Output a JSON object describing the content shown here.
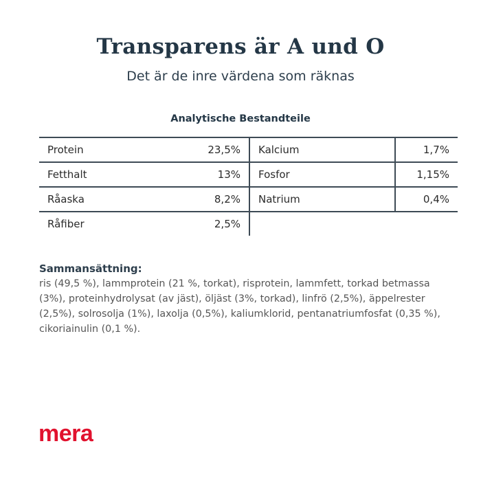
{
  "header": {
    "title": "Transparens är A und O",
    "subtitle": "Det är de inre värdena som räknas"
  },
  "analysis": {
    "title": "Analytische Bestandteile",
    "rows": [
      {
        "left": {
          "name": "Protein",
          "value": "23,5%"
        },
        "right": {
          "name": "Kalcium",
          "value": "1,7%"
        }
      },
      {
        "left": {
          "name": "Fetthalt",
          "value": "13%"
        },
        "right": {
          "name": "Fosfor",
          "value": "1,15%"
        }
      },
      {
        "left": {
          "name": "Råaska",
          "value": "8,2%"
        },
        "right": {
          "name": "Natrium",
          "value": "0,4%"
        }
      },
      {
        "left": {
          "name": "Råfiber",
          "value": "2,5%"
        }
      }
    ]
  },
  "composition": {
    "title": "Sammansättning:",
    "text": "ris (49,5 %), lammprotein (21 %, torkat), risprotein, lammfett, torkad bet­massa (3%), proteinhydrolysat (av jäst), öljäst (3%, torkad), linfrö (2,5%), äppelrester (2,5%), solrosolja (1%), laxolja (0,5%), kaliumklorid, pentanatri­umfosfat (0,35 %), cikoriainulin (0,1 %)."
  },
  "brand": {
    "logo": "mera",
    "color": "#e1122e"
  }
}
